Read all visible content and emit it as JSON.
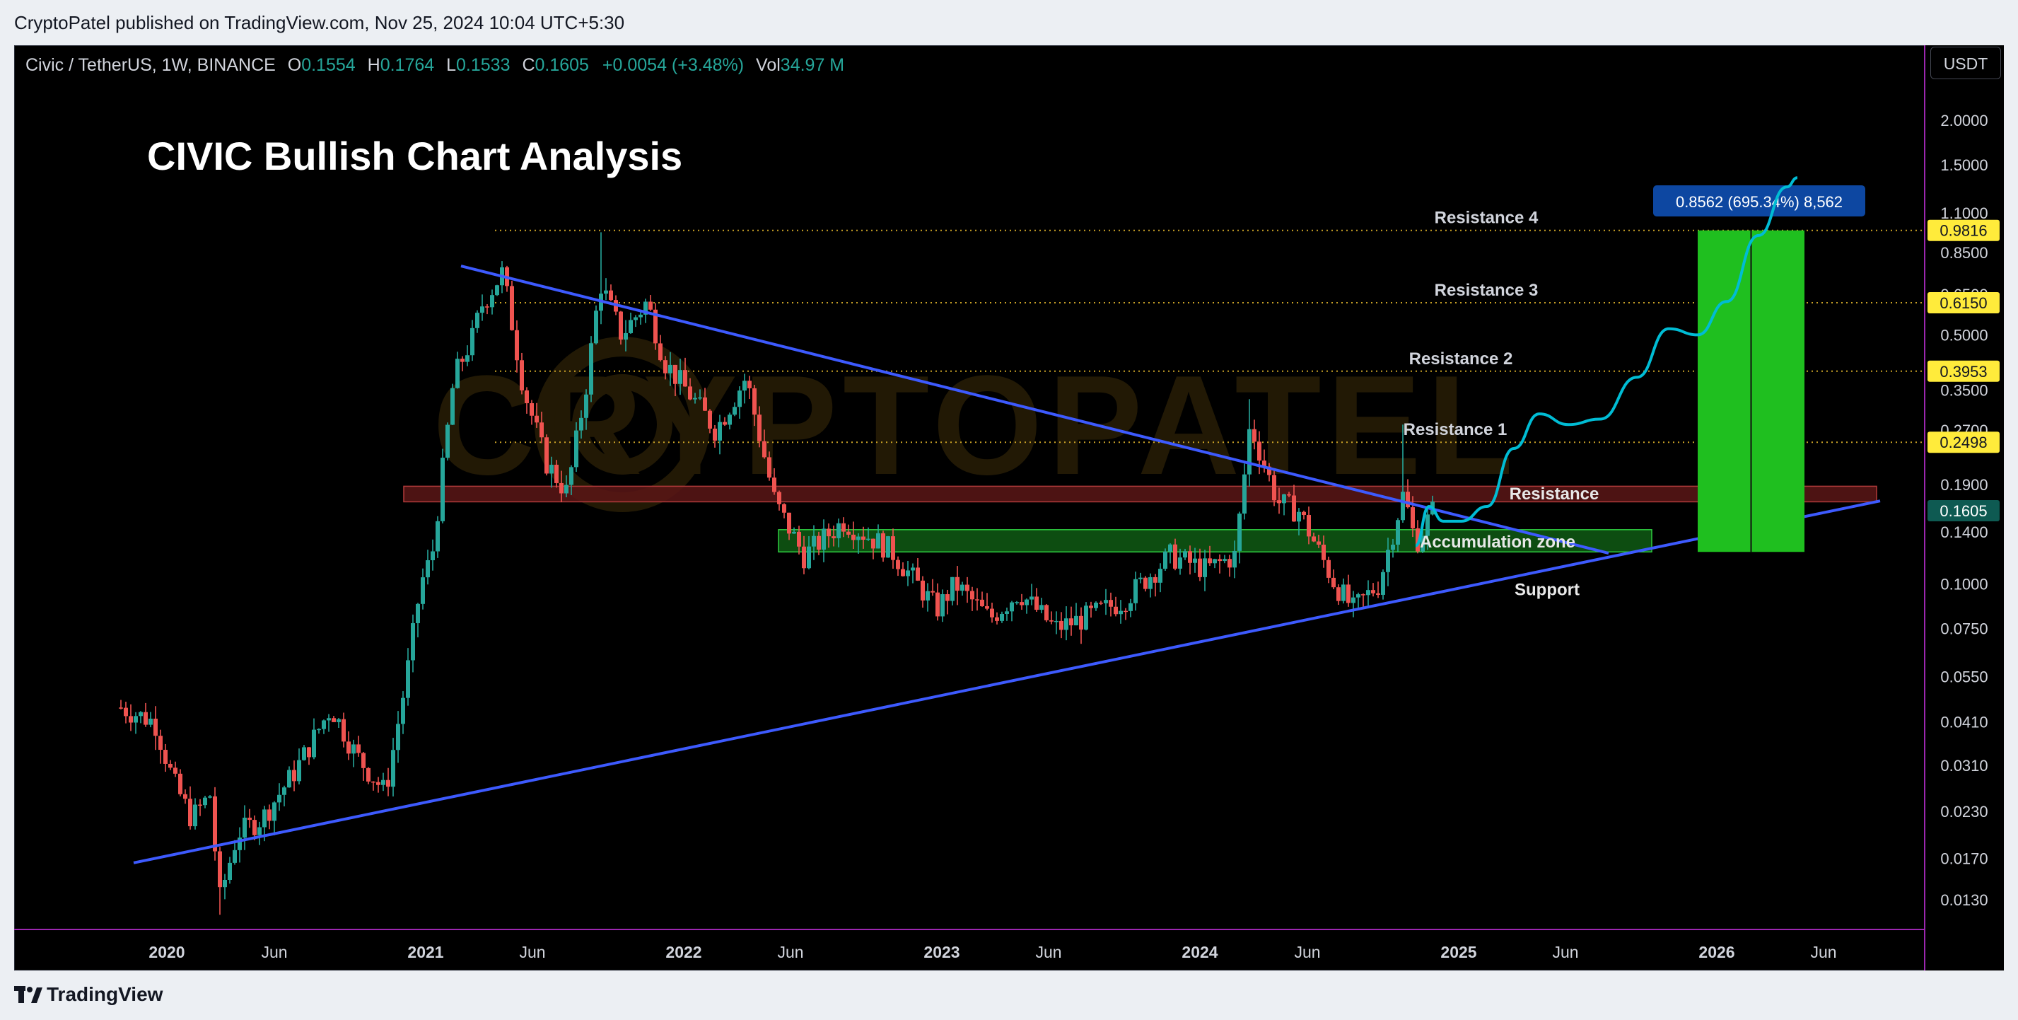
{
  "header": {
    "published": "CryptoPatel published on TradingView.com, Nov 25, 2024 10:04 UTC+5:30"
  },
  "legend": {
    "symbol": "Civic / TetherUS, 1W, BINANCE",
    "o_label": "O",
    "o": "0.1554",
    "h_label": "H",
    "h": "0.1764",
    "l_label": "L",
    "l": "0.1533",
    "c_label": "C",
    "c": "0.1605",
    "change": "+0.0054 (+3.48%)",
    "vol_label": "Vol",
    "vol": "34.97 M"
  },
  "currency_button": "USDT",
  "footer": {
    "brand": "TradingView"
  },
  "colors": {
    "up": "#26a69a",
    "down": "#ef5350",
    "trendline": "#3d5afe",
    "projection": "#00bcd4",
    "target_box": "#1fbf1f",
    "resistance_zone": "#5a1616",
    "accumulation_zone": "#0f5a14",
    "level_line": "#c9a227",
    "badge": "#ffeb3b",
    "last_price_badge": "#0e5a52"
  },
  "chart_data": {
    "type": "candlestick",
    "title": "CIVIC Bullish Chart Analysis",
    "price_scale": "log",
    "ylim": [
      0.0115,
      3.0
    ],
    "y_ticks": [
      "2.0000",
      "1.5000",
      "1.1000",
      "0.8500",
      "0.6500",
      "0.5000",
      "0.3500",
      "0.2700",
      "0.1900",
      "0.1400",
      "0.1000",
      "0.0750",
      "0.0550",
      "0.0410",
      "0.0310",
      "0.0230",
      "0.0170",
      "0.0130"
    ],
    "x_ticks": [
      "2020",
      "Jun",
      "2021",
      "Jun",
      "2022",
      "Jun",
      "2023",
      "Jun",
      "2024",
      "Jun",
      "2025",
      "Jun",
      "2026",
      "Jun"
    ],
    "x_tick_dates": [
      "2020-01-01",
      "2020-06-01",
      "2021-01-01",
      "2021-06-01",
      "2022-01-01",
      "2022-06-01",
      "2023-01-01",
      "2023-06-01",
      "2024-01-01",
      "2024-06-01",
      "2025-01-01",
      "2025-06-01",
      "2026-01-01",
      "2026-06-01"
    ],
    "price_keypoints": [
      [
        "2019-10-28",
        0.045
      ],
      [
        "2019-12-15",
        0.041
      ],
      [
        "2020-01-10",
        0.028
      ],
      [
        "2020-02-05",
        0.022
      ],
      [
        "2020-03-05",
        0.026
      ],
      [
        "2020-03-13",
        0.0125
      ],
      [
        "2020-04-10",
        0.02
      ],
      [
        "2020-05-15",
        0.022
      ],
      [
        "2020-07-01",
        0.03
      ],
      [
        "2020-08-20",
        0.045
      ],
      [
        "2020-09-25",
        0.033
      ],
      [
        "2020-11-05",
        0.026
      ],
      [
        "2020-12-05",
        0.055
      ],
      [
        "2020-12-25",
        0.1
      ],
      [
        "2021-01-10",
        0.12
      ],
      [
        "2021-02-10",
        0.38
      ],
      [
        "2021-03-10",
        0.5
      ],
      [
        "2021-03-20",
        0.6
      ],
      [
        "2021-04-20",
        0.75
      ],
      [
        "2021-05-20",
        0.35
      ],
      [
        "2021-06-20",
        0.22
      ],
      [
        "2021-07-20",
        0.18
      ],
      [
        "2021-08-15",
        0.35
      ],
      [
        "2021-09-05",
        0.7
      ],
      [
        "2021-10-05",
        0.5
      ],
      [
        "2021-11-10",
        0.62
      ],
      [
        "2021-12-05",
        0.42
      ],
      [
        "2022-01-15",
        0.33
      ],
      [
        "2022-02-15",
        0.27
      ],
      [
        "2022-03-30",
        0.38
      ],
      [
        "2022-05-10",
        0.17
      ],
      [
        "2022-06-20",
        0.12
      ],
      [
        "2022-08-15",
        0.15
      ],
      [
        "2022-10-20",
        0.125
      ],
      [
        "2022-12-25",
        0.085
      ],
      [
        "2023-01-20",
        0.1
      ],
      [
        "2023-03-10",
        0.08
      ],
      [
        "2023-04-20",
        0.095
      ],
      [
        "2023-06-10",
        0.075
      ],
      [
        "2023-07-20",
        0.08
      ],
      [
        "2023-09-15",
        0.09
      ],
      [
        "2023-11-20",
        0.12
      ],
      [
        "2024-01-10",
        0.11
      ],
      [
        "2024-02-20",
        0.12
      ],
      [
        "2024-03-12",
        0.28
      ],
      [
        "2024-04-20",
        0.17
      ],
      [
        "2024-05-20",
        0.16
      ],
      [
        "2024-07-10",
        0.1
      ],
      [
        "2024-08-05",
        0.085
      ],
      [
        "2024-09-10",
        0.1
      ],
      [
        "2024-10-15",
        0.18
      ],
      [
        "2024-11-01",
        0.13
      ],
      [
        "2024-11-25",
        0.1605
      ]
    ],
    "wick_spikes": [
      [
        "2021-09-06",
        0.97
      ],
      [
        "2024-03-11",
        0.33
      ],
      [
        "2024-10-14",
        0.28
      ]
    ],
    "last_price": 0.1605,
    "levels": [
      {
        "name": "Resistance 4",
        "value": 0.9816,
        "badge": "0.9816"
      },
      {
        "name": "Resistance 3",
        "value": 0.615,
        "badge": "0.6150"
      },
      {
        "name": "Resistance 2",
        "value": 0.3953,
        "badge": "0.3953"
      },
      {
        "name": "Resistance 1",
        "value": 0.2498,
        "badge": "0.2498"
      }
    ],
    "zones": [
      {
        "name": "Resistance",
        "top": 0.188,
        "bottom": 0.17,
        "from": "2020-12-01",
        "to": "2026-08-15"
      },
      {
        "name": "Accumulation zone",
        "top": 0.142,
        "bottom": 0.123,
        "from": "2022-05-15",
        "to": "2025-10-01"
      }
    ],
    "support_label": "Support",
    "trendlines": [
      {
        "name": "descending",
        "from": [
          "2021-02-20",
          0.78
        ],
        "to": [
          "2025-08-01",
          0.122
        ]
      },
      {
        "name": "ascending",
        "from": [
          "2019-11-15",
          0.0165
        ],
        "to": [
          "2026-08-20",
          0.171
        ]
      }
    ],
    "target_box": {
      "from": "2025-12-05",
      "to": "2026-05-05",
      "top": 0.9816,
      "bottom": 0.123
    },
    "target_label": "0.8562 (695.34%) 8,562",
    "projection_path": [
      [
        "2024-11-01",
        0.128
      ],
      [
        "2024-11-20",
        0.165
      ],
      [
        "2024-12-10",
        0.15
      ],
      [
        "2025-01-05",
        0.15
      ],
      [
        "2025-02-10",
        0.165
      ],
      [
        "2025-03-20",
        0.24
      ],
      [
        "2025-04-25",
        0.3
      ],
      [
        "2025-06-05",
        0.28
      ],
      [
        "2025-07-20",
        0.29
      ],
      [
        "2025-09-10",
        0.38
      ],
      [
        "2025-10-25",
        0.52
      ],
      [
        "2025-12-05",
        0.5
      ],
      [
        "2026-01-15",
        0.62
      ],
      [
        "2026-03-01",
        0.95
      ],
      [
        "2026-04-10",
        1.3
      ],
      [
        "2026-04-25",
        1.38
      ]
    ]
  }
}
